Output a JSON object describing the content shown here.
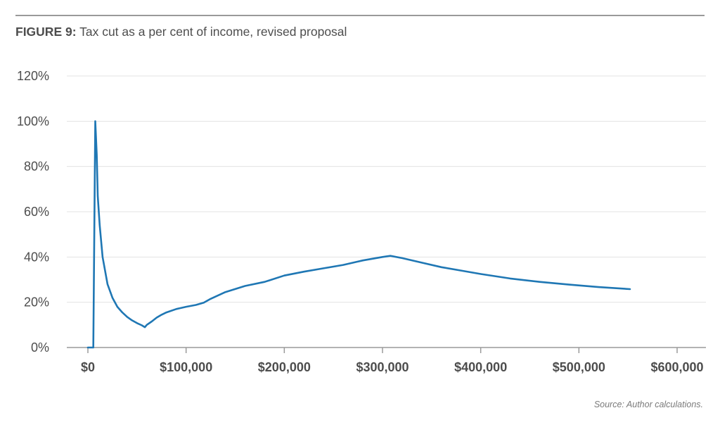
{
  "figure": {
    "label": "FIGURE 9:",
    "title": " Tax cut as a per cent of income, revised proposal",
    "source": "Source: Author calculations."
  },
  "colors": {
    "line": "#1f77b4",
    "grid": "#e3e3e3",
    "axis": "#9a9a9a",
    "text": "#4d4d4d"
  },
  "chart_data": {
    "type": "line",
    "title": "Tax cut as a per cent of income, revised proposal",
    "xlabel": "",
    "ylabel": "",
    "xlim": [
      0,
      600000
    ],
    "ylim": [
      0,
      120
    ],
    "x_ticks": [
      0,
      100000,
      200000,
      300000,
      400000,
      500000,
      600000
    ],
    "x_tick_labels": [
      "$0",
      "$100,000",
      "$200,000",
      "$300,000",
      "$400,000",
      "$500,000",
      "$600,000"
    ],
    "y_ticks": [
      0,
      20,
      40,
      60,
      80,
      100,
      120
    ],
    "y_tick_labels": [
      "0%",
      "20%",
      "40%",
      "60%",
      "80%",
      "100%",
      "120%"
    ],
    "grid": true,
    "legend": "none",
    "series": [
      {
        "x": [
          0,
          5000,
          5500,
          7500,
          9000,
          10000,
          12000,
          15000,
          20000,
          25000,
          30000,
          35000,
          40000,
          45000,
          50000,
          55000,
          58000,
          60000,
          65000,
          70000,
          75000,
          80000,
          90000,
          100000,
          110000,
          118000,
          125000,
          140000,
          160000,
          180000,
          200000,
          220000,
          240000,
          260000,
          280000,
          300000,
          308000,
          320000,
          340000,
          360000,
          380000,
          400000,
          430000,
          460000,
          490000,
          520000,
          552000
        ],
        "y": [
          0,
          0,
          0,
          100,
          85,
          67,
          54,
          40,
          28,
          22,
          18,
          15.5,
          13.5,
          12,
          10.8,
          9.8,
          9,
          10,
          11.5,
          13.2,
          14.5,
          15.5,
          17,
          18,
          18.8,
          19.8,
          21.5,
          24.5,
          27.2,
          29,
          31.8,
          33.5,
          35,
          36.5,
          38.5,
          40,
          40.5,
          39.5,
          37.5,
          35.5,
          34,
          32.5,
          30.5,
          29,
          27.8,
          26.7,
          25.8
        ]
      }
    ]
  }
}
